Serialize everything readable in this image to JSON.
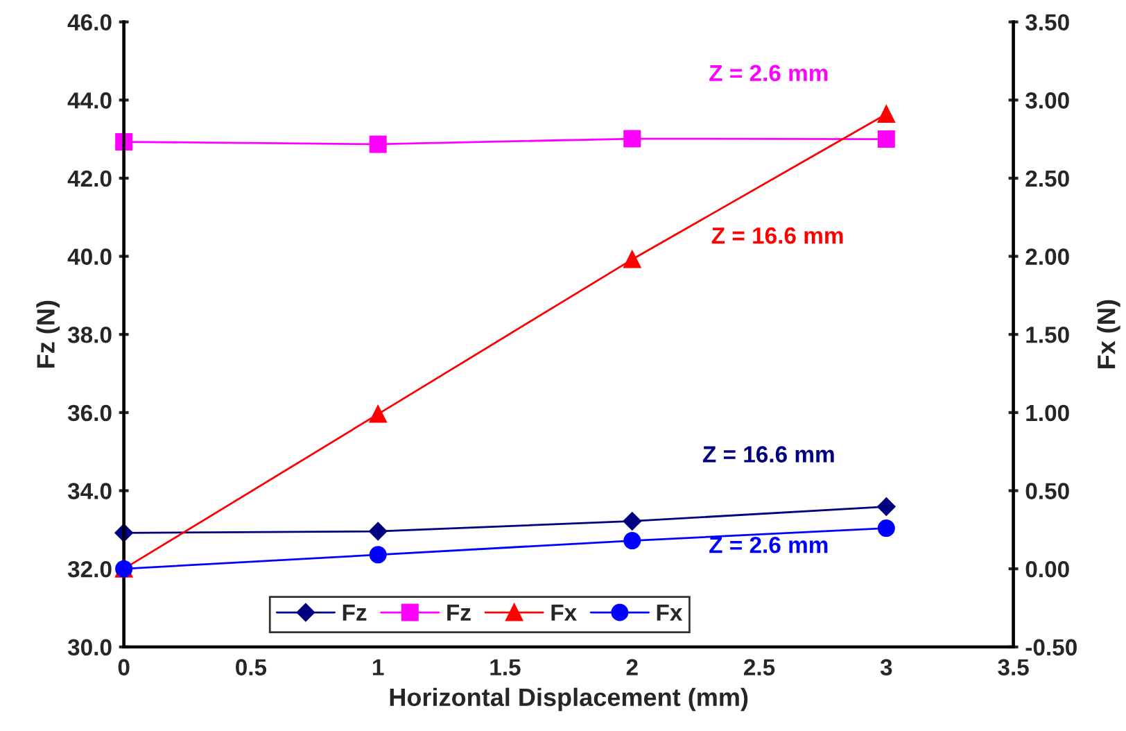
{
  "chart_data": {
    "type": "line",
    "xlabel": "Horizontal Displacement (mm)",
    "ylabel": "Fz (N)",
    "y2label": "Fx (N)",
    "x": [
      0,
      1,
      2,
      3
    ],
    "series": [
      {
        "name": "Fz",
        "color": "#000080",
        "marker": "diamond",
        "values": [
          32.92,
          32.96,
          33.22,
          33.59
        ]
      },
      {
        "name": "Fz",
        "color": "#ff00ff",
        "marker": "square",
        "values": [
          42.93,
          42.87,
          43.01,
          43.0
        ]
      },
      {
        "name": "Fx",
        "color": "#ff0000",
        "marker": "triangle",
        "axis": "y2",
        "values": [
          0.0,
          0.99,
          1.98,
          2.91
        ]
      },
      {
        "name": "Fx",
        "color": "#0000ff",
        "marker": "circle",
        "axis": "y2",
        "values": [
          0.0,
          0.09,
          0.18,
          0.26
        ]
      }
    ],
    "xlim": [
      0,
      3.5
    ],
    "xticks": [
      0,
      0.5,
      1,
      1.5,
      2,
      2.5,
      3,
      3.5
    ],
    "ylim": [
      30,
      46
    ],
    "yticks": [
      {
        "value": 30,
        "label": "30.0"
      },
      {
        "value": 32,
        "label": "32.0"
      },
      {
        "value": 34,
        "label": "34.0"
      },
      {
        "value": 36,
        "label": "36.0"
      },
      {
        "value": 38,
        "label": "38.0"
      },
      {
        "value": 40,
        "label": "40.0"
      },
      {
        "value": 42,
        "label": "42.0"
      },
      {
        "value": 44,
        "label": "44.0"
      },
      {
        "value": 46,
        "label": "46.0"
      }
    ],
    "y2lim": [
      -0.5,
      3.5
    ],
    "y2ticks": [
      {
        "value": -0.5,
        "label": "-0.50"
      },
      {
        "value": 0,
        "label": "0.00"
      },
      {
        "value": 0.5,
        "label": "0.50"
      },
      {
        "value": 1,
        "label": "1.00"
      },
      {
        "value": 1.5,
        "label": "1.50"
      },
      {
        "value": 2,
        "label": "2.00"
      },
      {
        "value": 2.5,
        "label": "2.50"
      },
      {
        "value": 3,
        "label": "3.00"
      },
      {
        "value": 3.5,
        "label": "3.50"
      }
    ],
    "annotations": [
      "Z = 2.6 mm",
      "Z = 16.6 mm",
      "Z = 16.6 mm",
      "Z = 2.6 mm"
    ],
    "grid": false,
    "legend": "bottom",
    "line_style": "solid"
  }
}
